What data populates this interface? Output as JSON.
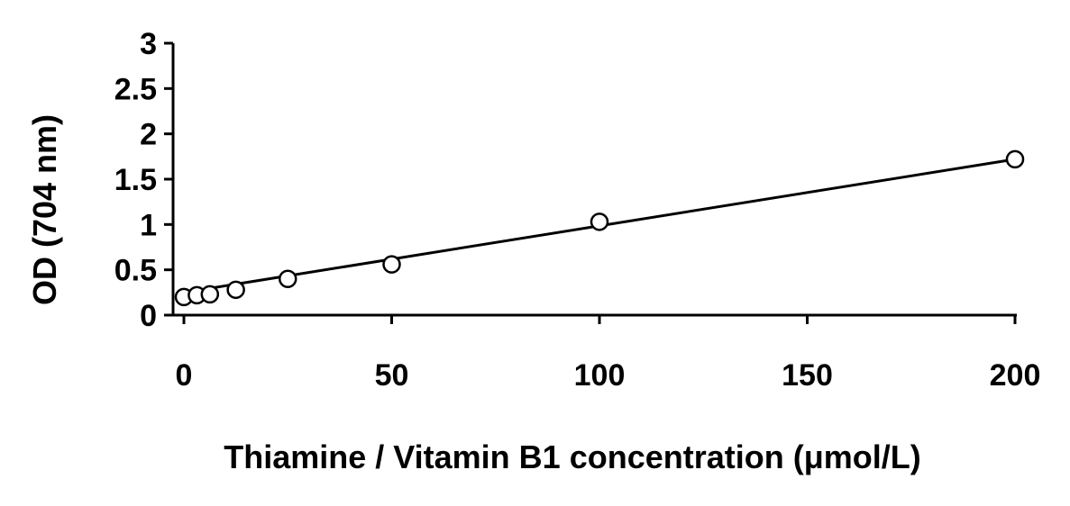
{
  "chart_data": {
    "type": "scatter",
    "title": "",
    "xlabel": "Thiamine / Vitamin B1 concentration (μmol/L)",
    "ylabel": "OD (704 nm)",
    "xlim": [
      0,
      200
    ],
    "ylim": [
      0,
      3
    ],
    "x_ticks": [
      "0",
      "50",
      "100",
      "150",
      "200"
    ],
    "y_ticks": [
      "0",
      "0.5",
      "1",
      "1.5",
      "2",
      "2.5",
      "3"
    ],
    "grid": false,
    "legend": "none",
    "series": [
      {
        "x": [
          0,
          3.125,
          6.25,
          12.5,
          25,
          50,
          100,
          200
        ],
        "y": [
          0.2,
          0.22,
          0.23,
          0.28,
          0.4,
          0.56,
          1.03,
          1.72
        ],
        "marker": "open-circle",
        "color": "#000000"
      }
    ],
    "trendline": {
      "type": "linear",
      "x": [
        0,
        200
      ],
      "y": [
        0.25,
        1.72
      ],
      "color": "#000000"
    }
  }
}
